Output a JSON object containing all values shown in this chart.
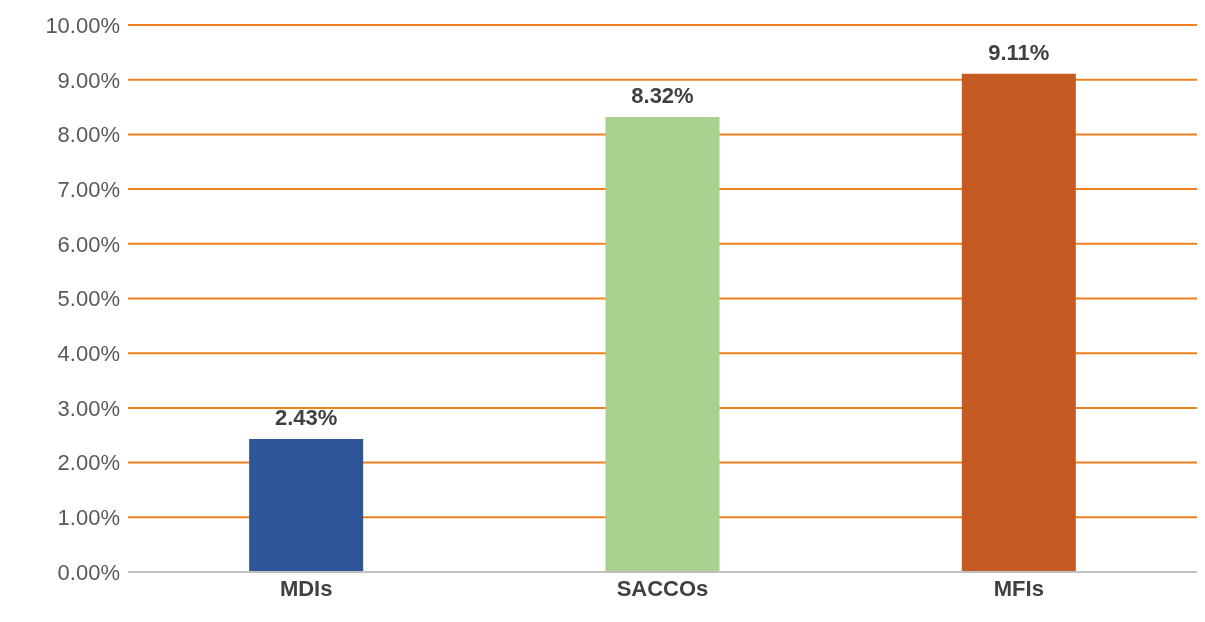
{
  "chart_data": {
    "type": "bar",
    "categories": [
      "MDIs",
      "SACCOs",
      "MFIs"
    ],
    "values": [
      2.43,
      8.32,
      9.11
    ],
    "colors": [
      "#2e5597",
      "#a9d18e",
      "#c55a23"
    ],
    "value_labels": [
      "2.43%",
      "8.32%",
      "9.11%"
    ],
    "ylim": [
      0,
      10
    ],
    "yticks": [
      {
        "value": 0,
        "label": "0.00%"
      },
      {
        "value": 1,
        "label": "1.00%"
      },
      {
        "value": 2,
        "label": "2.00%"
      },
      {
        "value": 3,
        "label": "3.00%"
      },
      {
        "value": 4,
        "label": "4.00%"
      },
      {
        "value": 5,
        "label": "5.00%"
      },
      {
        "value": 6,
        "label": "6.00%"
      },
      {
        "value": 7,
        "label": "7.00%"
      },
      {
        "value": 8,
        "label": "8.00%"
      },
      {
        "value": 9,
        "label": "9.00%"
      },
      {
        "value": 10,
        "label": "10.00%"
      }
    ],
    "grid": "y",
    "legend": false
  }
}
